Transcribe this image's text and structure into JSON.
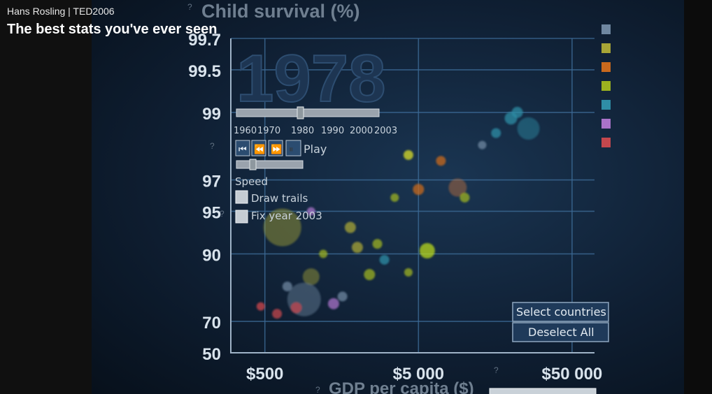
{
  "video": {
    "channel": "Hans Rosling | TED2006",
    "headline": "The best stats you've ever seen"
  },
  "controls": {
    "year_display": "1978",
    "timeline_labels": [
      "1960",
      "1970",
      "1980",
      "1990",
      "2000",
      "2003"
    ],
    "timeline_value": 1978,
    "play_label": "Play",
    "speed_label": "Speed",
    "draw_trails_label": "Draw trails",
    "fix_year_label": "Fix year 2003",
    "select_countries_label": "Select countries",
    "deselect_all_label": "Deselect All",
    "help_marks": [
      "?",
      "?",
      "?",
      "?",
      "?"
    ]
  },
  "colors": {
    "accent_bubble": "#c8d41e",
    "gridline": "#3c6a95",
    "axis_text": "#d9e3ec",
    "legend": [
      "#6f87a0",
      "#a7a536",
      "#c9691d",
      "#9cb21f",
      "#2f8ea6",
      "#a973c9",
      "#c4474d"
    ]
  },
  "chart_data": {
    "type": "scatter",
    "title": "Child survival (%)",
    "xlabel": "GDP per capita ($)",
    "ylabel": "Child survival (%)",
    "x_scale": "log",
    "y_scale": "reciprocal",
    "x_ticks": [
      {
        "value": 500,
        "label": "$500"
      },
      {
        "value": 5000,
        "label": "$5 000"
      },
      {
        "value": 50000,
        "label": "$50 000"
      }
    ],
    "y_ticks": [
      {
        "value": 99.7,
        "label": "99.7"
      },
      {
        "value": 99.5,
        "label": "99.5"
      },
      {
        "value": 99,
        "label": "99"
      },
      {
        "value": 97,
        "label": "97"
      },
      {
        "value": 95,
        "label": "95"
      },
      {
        "value": 90,
        "label": "90"
      },
      {
        "value": 70,
        "label": "70"
      },
      {
        "value": 50,
        "label": "50"
      }
    ],
    "xlim": [
      300,
      70000
    ],
    "ylim": [
      50,
      99.7
    ],
    "grid": true,
    "legend_position": "right",
    "points": [
      {
        "x": 4300,
        "y": 98.0,
        "r": 7,
        "color": "#d9de2a"
      },
      {
        "x": 5700,
        "y": 90.5,
        "r": 11,
        "color": "#b8d81c"
      },
      {
        "x": 650,
        "y": 93.5,
        "r": 27,
        "color": "#a8a637"
      },
      {
        "x": 1000,
        "y": 85.5,
        "r": 12,
        "color": "#a7a536"
      },
      {
        "x": 900,
        "y": 79.0,
        "r": 24,
        "color": "#6f87a0"
      },
      {
        "x": 9000,
        "y": 96.6,
        "r": 13,
        "color": "#c4703a"
      },
      {
        "x": 26000,
        "y": 98.7,
        "r": 16,
        "color": "#2f8ea6"
      },
      {
        "x": 20000,
        "y": 98.9,
        "r": 9,
        "color": "#2f8ea6"
      },
      {
        "x": 16000,
        "y": 98.6,
        "r": 7,
        "color": "#2f8ea6"
      },
      {
        "x": 22000,
        "y": 99.0,
        "r": 8,
        "color": "#2f8ea6"
      },
      {
        "x": 470,
        "y": 76.5,
        "r": 6,
        "color": "#d2454d"
      },
      {
        "x": 600,
        "y": 73.5,
        "r": 7,
        "color": "#c4474d"
      },
      {
        "x": 800,
        "y": 76.0,
        "r": 8,
        "color": "#c4474d"
      },
      {
        "x": 1400,
        "y": 77.5,
        "r": 8,
        "color": "#a973c9"
      },
      {
        "x": 2000,
        "y": 91.0,
        "r": 8,
        "color": "#a7a536"
      },
      {
        "x": 2700,
        "y": 91.5,
        "r": 7,
        "color": "#9cb21f"
      },
      {
        "x": 3500,
        "y": 96.0,
        "r": 6,
        "color": "#9cb21f"
      },
      {
        "x": 1800,
        "y": 93.5,
        "r": 8,
        "color": "#a7a536"
      },
      {
        "x": 1200,
        "y": 90.0,
        "r": 6,
        "color": "#9cb21f"
      },
      {
        "x": 2400,
        "y": 86.0,
        "r": 8,
        "color": "#9cb21f"
      },
      {
        "x": 4300,
        "y": 86.5,
        "r": 6,
        "color": "#9cb21f"
      },
      {
        "x": 5000,
        "y": 96.5,
        "r": 8,
        "color": "#c9691d"
      },
      {
        "x": 7000,
        "y": 97.8,
        "r": 7,
        "color": "#c9691d"
      },
      {
        "x": 10000,
        "y": 96.0,
        "r": 7,
        "color": "#9cb21f"
      },
      {
        "x": 13000,
        "y": 98.3,
        "r": 6,
        "color": "#6f87a0"
      },
      {
        "x": 1600,
        "y": 80.0,
        "r": 7,
        "color": "#6f87a0"
      },
      {
        "x": 700,
        "y": 83.0,
        "r": 7,
        "color": "#6f87a0"
      },
      {
        "x": 3000,
        "y": 89.0,
        "r": 7,
        "color": "#2f8ea6"
      },
      {
        "x": 1000,
        "y": 95.0,
        "r": 6,
        "color": "#a973c9"
      }
    ]
  }
}
